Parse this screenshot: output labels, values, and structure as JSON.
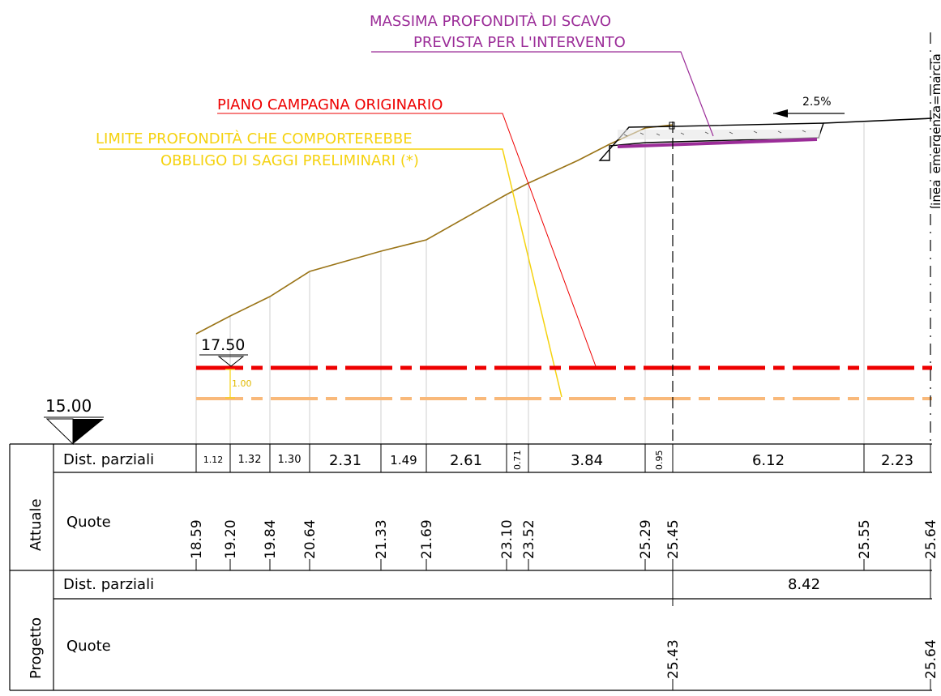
{
  "annotations": {
    "max_excavation_line1": "MASSIMA PROFONDITÀ DI SCAVO",
    "max_excavation_line2": "PREVISTA PER L'INTERVENTO",
    "original_ground": "PIANO CAMPAGNA ORIGINARIO",
    "limit_depth_line1": "LIMITE PROFONDITÀ CHE COMPORTEREBBE",
    "limit_depth_line2": "OBBLIGO DI SAGGI PRELIMINARI (*)",
    "slope": "2.5%",
    "lane_label": "linea_emergenza=marcia",
    "level_1750": "17.50",
    "offset_100": "1.00",
    "datum": "15.00"
  },
  "table": {
    "attuale_label": "Attuale",
    "progetto_label": "Progetto",
    "dist_label": "Dist. parziali",
    "quote_label": "Quote",
    "attuale_dist": [
      "1.12",
      "1.32",
      "1.30",
      "2.31",
      "1.49",
      "2.61",
      "0.71",
      "3.84",
      "0.95",
      "6.12",
      "2.23"
    ],
    "attuale_quote": [
      "18.59",
      "19.20",
      "19.84",
      "20.64",
      "21.33",
      "21.69",
      "23.10",
      "23.52",
      "25.29",
      "25.45",
      "25.55",
      "25.64"
    ],
    "progetto_dist": [
      "8.42"
    ],
    "progetto_quote": [
      "25.43",
      "25.64"
    ]
  },
  "colors": {
    "ground": "#9a7417",
    "red": "#ee0000",
    "orange": "#f9b97a",
    "yellow": "#f5d20f",
    "purple": "#9b2c98",
    "black": "#000000"
  }
}
